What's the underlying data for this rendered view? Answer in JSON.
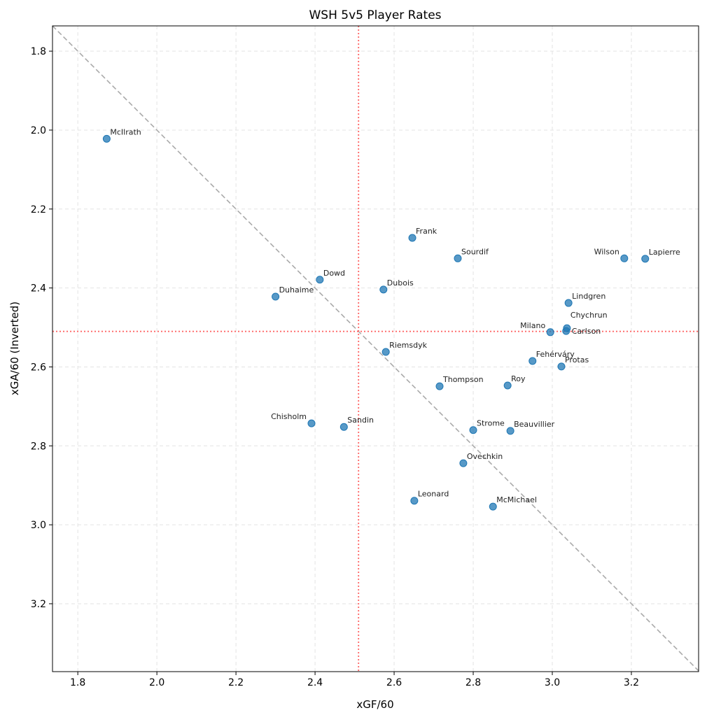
{
  "chart_data": {
    "type": "scatter",
    "title": "WSH 5v5 Player Rates",
    "xlabel": "xGF/60",
    "ylabel": "xGA/60 (Inverted)",
    "xlim": [
      1.736,
      3.37
    ],
    "ylim": [
      3.372,
      1.736
    ],
    "y_inverted": true,
    "grid": true,
    "xticks": [
      "1.8",
      "2.0",
      "2.2",
      "2.4",
      "2.6",
      "2.8",
      "3.0",
      "3.2"
    ],
    "yticks": [
      "1.8",
      "2.0",
      "2.2",
      "2.4",
      "2.6",
      "2.8",
      "3.0",
      "3.2"
    ],
    "point_color": "#1f77b4",
    "reference_lines": {
      "vertical_x": 2.51,
      "horizontal_y": 2.51,
      "color": "#ff6666",
      "diagonal": "y = x",
      "diagonal_color": "#aaaaaa"
    },
    "points": [
      {
        "label": "McIlrath",
        "x": 1.873,
        "y": 2.022
      },
      {
        "label": "Frank",
        "x": 2.646,
        "y": 2.273
      },
      {
        "label": "Sourdif",
        "x": 2.761,
        "y": 2.325
      },
      {
        "label": "Wilson",
        "x": 3.182,
        "y": 2.325
      },
      {
        "label": "Lapierre",
        "x": 3.235,
        "y": 2.326
      },
      {
        "label": "Dowd",
        "x": 2.412,
        "y": 2.379
      },
      {
        "label": "Dubois",
        "x": 2.573,
        "y": 2.404
      },
      {
        "label": "Duhaime",
        "x": 2.3,
        "y": 2.422
      },
      {
        "label": "Lindgren",
        "x": 3.041,
        "y": 2.438
      },
      {
        "label": "Milano",
        "x": 2.995,
        "y": 2.512
      },
      {
        "label": "Chychrun",
        "x": 3.037,
        "y": 2.502
      },
      {
        "label": "Carlson",
        "x": 3.035,
        "y": 2.509
      },
      {
        "label": "Riemsdyk",
        "x": 2.579,
        "y": 2.562
      },
      {
        "label": "Fehérváry",
        "x": 2.95,
        "y": 2.585
      },
      {
        "label": "Protas",
        "x": 3.023,
        "y": 2.599
      },
      {
        "label": "Thompson",
        "x": 2.715,
        "y": 2.649
      },
      {
        "label": "Roy",
        "x": 2.887,
        "y": 2.647
      },
      {
        "label": "Chisholm",
        "x": 2.391,
        "y": 2.743
      },
      {
        "label": "Sandin",
        "x": 2.473,
        "y": 2.752
      },
      {
        "label": "Strome",
        "x": 2.8,
        "y": 2.76
      },
      {
        "label": "Beauvillier",
        "x": 2.894,
        "y": 2.762
      },
      {
        "label": "Ovechkin",
        "x": 2.775,
        "y": 2.844
      },
      {
        "label": "Leonard",
        "x": 2.651,
        "y": 2.939
      },
      {
        "label": "McMichael",
        "x": 2.85,
        "y": 2.954
      }
    ]
  }
}
